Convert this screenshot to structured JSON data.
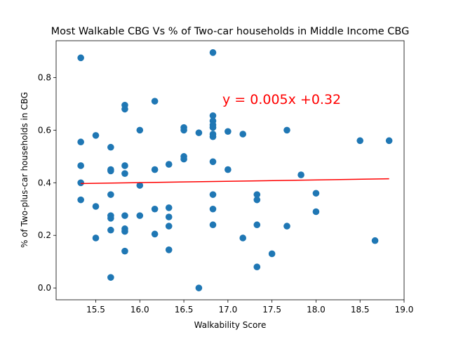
{
  "chart_data": {
    "type": "scatter",
    "title": "Most Walkable CBG Vs % of Two-car households in Middle Income CBG",
    "xlabel": "Walkability Score",
    "ylabel": "% of Two-plus-car households in CBG",
    "xlim": [
      15.05,
      19.0
    ],
    "ylim": [
      -0.045,
      0.94
    ],
    "xticks": [
      "15.5",
      "16.0",
      "16.5",
      "17.0",
      "17.5",
      "18.0",
      "18.5",
      "19.0"
    ],
    "yticks": [
      "0.0",
      "0.2",
      "0.4",
      "0.6",
      "0.8"
    ],
    "grid": false,
    "point_color": "#1f77b4",
    "line_color": "#ff0000",
    "annotation": "y = 0.005x +0.32",
    "regression": {
      "x": [
        15.33,
        18.83
      ],
      "y": [
        0.397,
        0.415
      ]
    },
    "points": [
      [
        15.33,
        0.875
      ],
      [
        15.33,
        0.555
      ],
      [
        15.33,
        0.465
      ],
      [
        15.33,
        0.4
      ],
      [
        15.33,
        0.335
      ],
      [
        15.5,
        0.58
      ],
      [
        15.5,
        0.31
      ],
      [
        15.5,
        0.19
      ],
      [
        15.67,
        0.535
      ],
      [
        15.67,
        0.45
      ],
      [
        15.67,
        0.445
      ],
      [
        15.67,
        0.355
      ],
      [
        15.67,
        0.275
      ],
      [
        15.67,
        0.265
      ],
      [
        15.67,
        0.22
      ],
      [
        15.67,
        0.04
      ],
      [
        15.83,
        0.695
      ],
      [
        15.83,
        0.68
      ],
      [
        15.83,
        0.465
      ],
      [
        15.83,
        0.435
      ],
      [
        15.83,
        0.275
      ],
      [
        15.83,
        0.225
      ],
      [
        15.83,
        0.215
      ],
      [
        15.83,
        0.14
      ],
      [
        16.0,
        0.6
      ],
      [
        16.0,
        0.39
      ],
      [
        16.0,
        0.275
      ],
      [
        16.17,
        0.71
      ],
      [
        16.17,
        0.45
      ],
      [
        16.17,
        0.3
      ],
      [
        16.17,
        0.205
      ],
      [
        16.33,
        0.47
      ],
      [
        16.33,
        0.305
      ],
      [
        16.33,
        0.27
      ],
      [
        16.33,
        0.235
      ],
      [
        16.33,
        0.145
      ],
      [
        16.5,
        0.61
      ],
      [
        16.5,
        0.6
      ],
      [
        16.5,
        0.5
      ],
      [
        16.5,
        0.49
      ],
      [
        16.67,
        0.59
      ],
      [
        16.67,
        0.0
      ],
      [
        16.83,
        0.895
      ],
      [
        16.83,
        0.655
      ],
      [
        16.83,
        0.635
      ],
      [
        16.83,
        0.62
      ],
      [
        16.83,
        0.61
      ],
      [
        16.83,
        0.585
      ],
      [
        16.83,
        0.575
      ],
      [
        16.83,
        0.48
      ],
      [
        16.83,
        0.355
      ],
      [
        16.83,
        0.3
      ],
      [
        16.83,
        0.24
      ],
      [
        17.0,
        0.595
      ],
      [
        17.0,
        0.45
      ],
      [
        17.17,
        0.585
      ],
      [
        17.17,
        0.19
      ],
      [
        17.33,
        0.355
      ],
      [
        17.33,
        0.335
      ],
      [
        17.33,
        0.24
      ],
      [
        17.33,
        0.08
      ],
      [
        17.5,
        0.13
      ],
      [
        17.67,
        0.6
      ],
      [
        17.67,
        0.235
      ],
      [
        17.83,
        0.43
      ],
      [
        18.0,
        0.36
      ],
      [
        18.0,
        0.29
      ],
      [
        18.5,
        0.56
      ],
      [
        18.67,
        0.18
      ],
      [
        18.83,
        0.56
      ]
    ]
  }
}
